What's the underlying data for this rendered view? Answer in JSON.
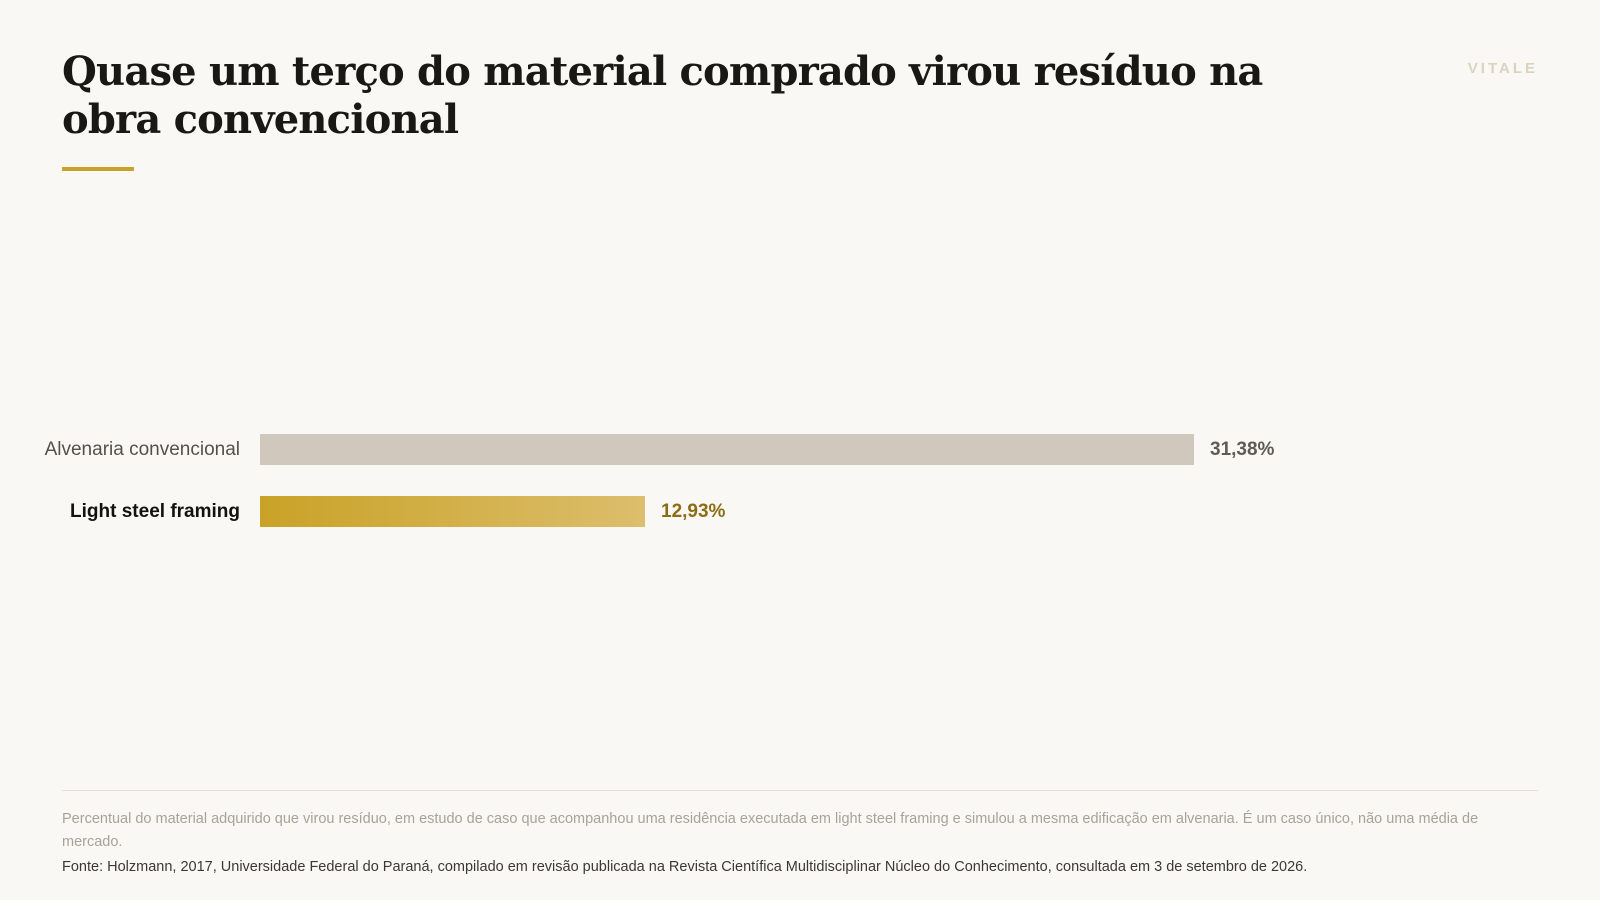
{
  "header": {
    "title": "Quase um terço do material comprado virou resíduo na obra convencional",
    "brand": "VITALE"
  },
  "chart_data": {
    "type": "bar",
    "orientation": "horizontal",
    "title": "Quase um terço do material comprado virou resíduo na obra convencional",
    "categories": [
      "Alvenaria convencional",
      "Light steel framing"
    ],
    "values": [
      31.38,
      12.93
    ],
    "value_labels": [
      "31,38%",
      "12,93%"
    ],
    "highlighted_category": "Light steel framing",
    "xlim": [
      0,
      31.38
    ],
    "grid": false,
    "legend": "none",
    "colors": {
      "base": "#d0c8bc",
      "highlight": "#c9a227"
    }
  },
  "footer": {
    "note": "Percentual do material adquirido que virou resíduo, em estudo de caso que acompanhou uma residência executada em light steel framing e simulou a mesma edificação em alvenaria. É um caso único, não uma média de mercado.",
    "source": "Fonte: Holzmann, 2017, Universidade Federal do Paraná, compilado em revisão publicada na Revista Científica Multidisciplinar Núcleo do Conhecimento, consultada em 3 de setembro de 2026."
  }
}
